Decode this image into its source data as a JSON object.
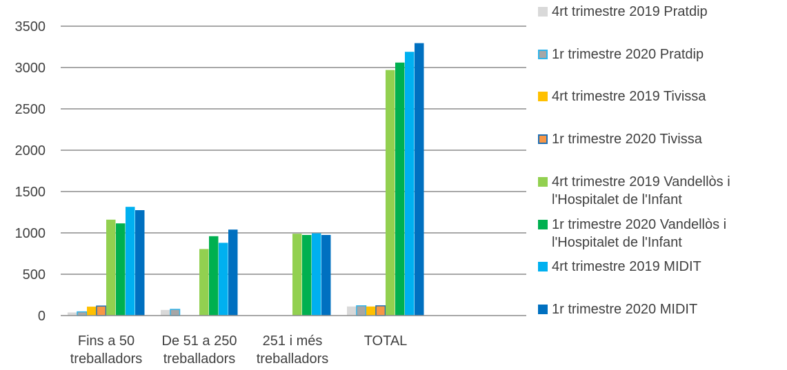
{
  "chart_data": {
    "type": "bar",
    "title": "",
    "xlabel": "",
    "ylabel": "",
    "ylim": [
      0,
      3500
    ],
    "yticks": [
      0,
      500,
      1000,
      1500,
      2000,
      2500,
      3000,
      3500
    ],
    "grid": true,
    "legend_position": "right",
    "categories": [
      [
        "Fins a 50",
        "treballadors"
      ],
      [
        "De 51 a 250",
        "treballadors"
      ],
      [
        "251 i més",
        "treballadors"
      ],
      [
        "TOTAL"
      ]
    ],
    "series": [
      {
        "name": [
          "4rt trimestre 2019 Pratdip"
        ],
        "color": "#d9d9d9",
        "border": "#d9d9d9",
        "values": [
          38,
          68,
          0,
          110
        ]
      },
      {
        "name": [
          "1r trimestre 2020 Pratdip"
        ],
        "color": "#a6a6a6",
        "border": "#2fb4ea",
        "values": [
          45,
          75,
          0,
          118
        ]
      },
      {
        "name": [
          "4rt trimestre 2019 Tivissa"
        ],
        "color": "#ffc000",
        "border": "#ffc000",
        "values": [
          108,
          0,
          0,
          110
        ]
      },
      {
        "name": [
          "1r trimestre 2020 Tivissa"
        ],
        "color": "#f79646",
        "border": "#1f6fb4",
        "values": [
          115,
          0,
          0,
          118
        ]
      },
      {
        "name": [
          "4rt trimestre 2019 Vandellòs i",
          "l'Hospitalet de l'Infant"
        ],
        "color": "#92d050",
        "border": "#92d050",
        "values": [
          1160,
          805,
          990,
          2970
        ]
      },
      {
        "name": [
          "1r trimestre 2020 Vandellòs i",
          "l'Hospitalet de l'Infant"
        ],
        "color": "#00b050",
        "border": "#00b050",
        "values": [
          1115,
          960,
          975,
          3060
        ]
      },
      {
        "name": [
          "4rt trimestre 2019 MIDIT"
        ],
        "color": "#00b0f0",
        "border": "#00b0f0",
        "values": [
          1315,
          880,
          995,
          3190
        ]
      },
      {
        "name": [
          "1r trimestre 2020 MIDIT"
        ],
        "color": "#0070c0",
        "border": "#0070c0",
        "values": [
          1275,
          1040,
          975,
          3295
        ]
      }
    ]
  }
}
